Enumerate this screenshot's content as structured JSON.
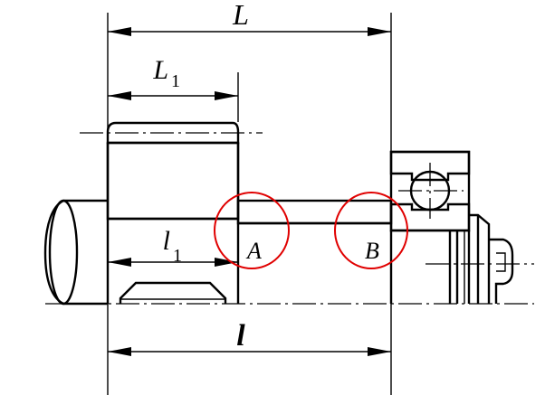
{
  "labels": {
    "overall_length": "L",
    "gear_hub_length": "L",
    "gear_hub_length_sub": "1",
    "bearing_span": "l",
    "key_length": "l",
    "key_length_sub": "1",
    "point_a": "A",
    "point_b": "B"
  },
  "colors": {
    "line": "#000000",
    "highlight_circle": "#e00000",
    "background": "#ffffff"
  }
}
